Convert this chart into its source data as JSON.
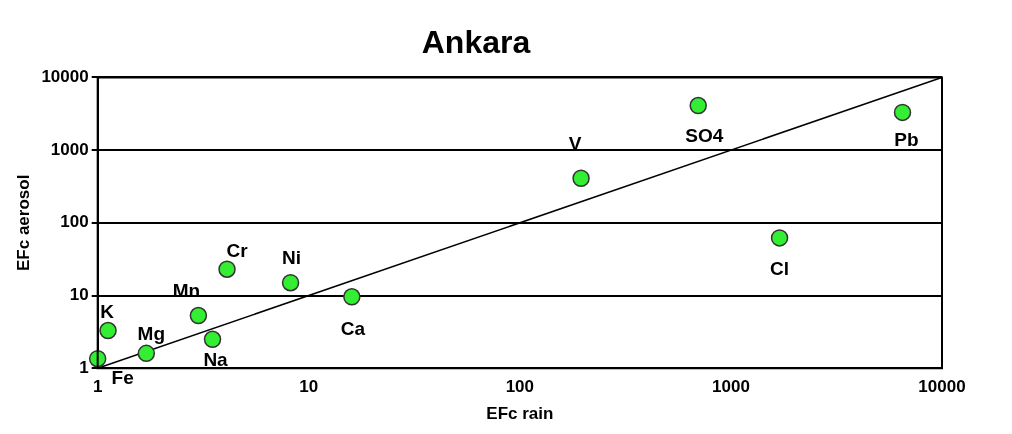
{
  "chart_data": {
    "type": "scatter",
    "title": "Ankara",
    "xlabel": "EFc rain",
    "ylabel": "EFc aerosol",
    "log": "xy",
    "grid": "y",
    "marker": "circle",
    "legend": false,
    "xlim": [
      1,
      10000
    ],
    "xticks": [
      1,
      10,
      100,
      1000,
      10000
    ],
    "ylim": [
      1,
      10000
    ],
    "yticks": [
      1,
      10,
      100,
      1000,
      10000
    ],
    "series": [
      {
        "color": "#33ee33",
        "x": [
          1,
          1.12,
          1.7,
          3,
          3.5,
          4.1,
          8.2,
          16,
          195,
          700,
          1700,
          6500
        ],
        "values": [
          1.35,
          3.3,
          1.6,
          5.3,
          2.5,
          23,
          15,
          9.6,
          410,
          4100,
          62,
          3300
        ]
      },
      {
        "type": "line",
        "color": "#000000",
        "marker": "none",
        "x": [
          1,
          10000
        ],
        "values": [
          1,
          10000
        ]
      }
    ],
    "annotations": [
      {
        "text": "Fe",
        "x": 1,
        "y": 1.35
      },
      {
        "text": "K",
        "x": 1.12,
        "y": 3.3
      },
      {
        "text": "Mg",
        "x": 1.7,
        "y": 1.6
      },
      {
        "text": "Mn",
        "x": 3,
        "y": 5.3
      },
      {
        "text": "Na",
        "x": 3.5,
        "y": 2.5
      },
      {
        "text": "Cr",
        "x": 4.1,
        "y": 23
      },
      {
        "text": "Ni",
        "x": 8.2,
        "y": 15
      },
      {
        "text": "Ca",
        "x": 16,
        "y": 9.6
      },
      {
        "text": "V",
        "x": 195,
        "y": 410
      },
      {
        "text": "SO4",
        "x": 700,
        "y": 4100
      },
      {
        "text": "Cl",
        "x": 1700,
        "y": 62
      },
      {
        "text": "Pb",
        "x": 6500,
        "y": 3300
      }
    ]
  }
}
